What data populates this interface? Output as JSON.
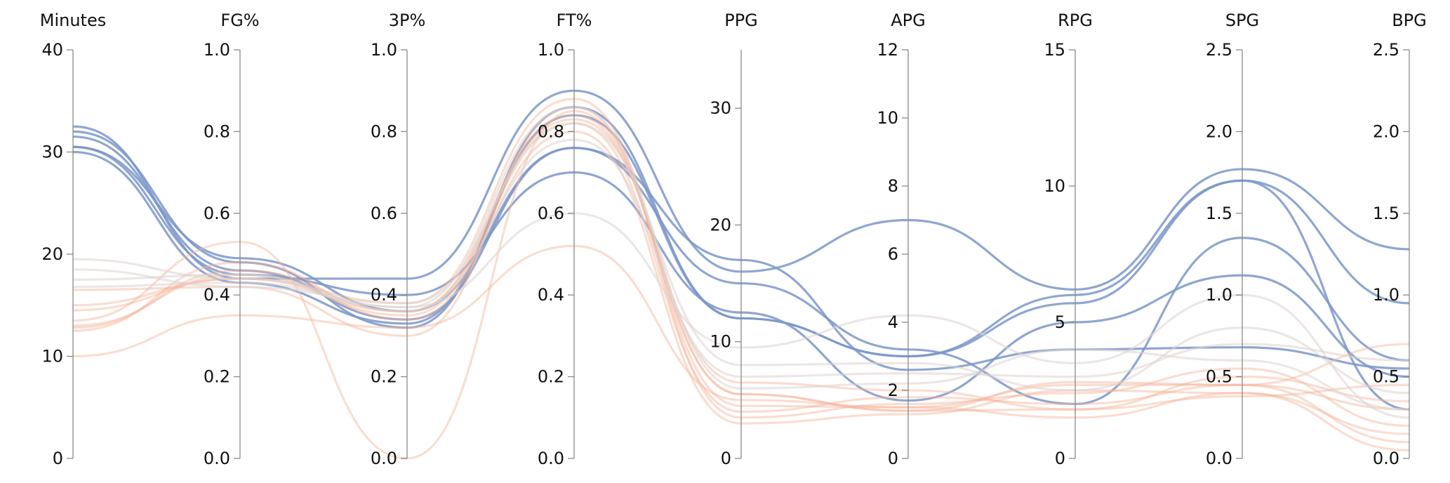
{
  "chart_data": {
    "type": "parallel-coordinates",
    "title": "",
    "colors": {
      "blue": "#7b97c9",
      "orange": "#f4b49a",
      "grey": "#dcd4d0",
      "axis": "#8a8a8a"
    },
    "axes": [
      {
        "name": "Minutes",
        "range": [
          0,
          40
        ],
        "ticks": [
          "0",
          "10",
          "20",
          "30",
          "40"
        ]
      },
      {
        "name": "FG%",
        "range": [
          0,
          1
        ],
        "ticks": [
          "0.0",
          "0.2",
          "0.4",
          "0.6",
          "0.8",
          "1.0"
        ]
      },
      {
        "name": "3P%",
        "range": [
          0,
          1
        ],
        "ticks": [
          "0.0",
          "0.2",
          "0.4",
          "0.6",
          "0.8",
          "1.0"
        ]
      },
      {
        "name": "FT%",
        "range": [
          0,
          1
        ],
        "ticks": [
          "0.0",
          "0.2",
          "0.4",
          "0.6",
          "0.8",
          "1.0"
        ]
      },
      {
        "name": "PPG",
        "range": [
          0,
          35
        ],
        "ticks": [
          "0",
          "10",
          "20",
          "30"
        ]
      },
      {
        "name": "APG",
        "range": [
          0,
          12
        ],
        "ticks": [
          "0",
          "2",
          "4",
          "6",
          "8",
          "10",
          "12"
        ]
      },
      {
        "name": "RPG",
        "range": [
          0,
          15
        ],
        "ticks": [
          "0",
          "5",
          "10",
          "15"
        ]
      },
      {
        "name": "SPG",
        "range": [
          0,
          2.5
        ],
        "ticks": [
          "0.0",
          "0.5",
          "1.0",
          "1.5",
          "2.0",
          "2.5"
        ]
      },
      {
        "name": "BPG",
        "range": [
          0,
          2.5
        ],
        "ticks": [
          "0.0",
          "0.5",
          "1.0",
          "1.5",
          "2.0",
          "2.5"
        ]
      }
    ],
    "series": [
      {
        "color": "blue",
        "opacity": 0.85,
        "values": [
          32.5,
          0.44,
          0.44,
          0.9,
          16.0,
          7.0,
          6.2,
          1.77,
          1.28
        ]
      },
      {
        "color": "blue",
        "opacity": 0.85,
        "values": [
          32.0,
          0.48,
          0.32,
          0.86,
          12.0,
          3.0,
          5.7,
          1.7,
          0.95
        ]
      },
      {
        "color": "blue",
        "opacity": 0.85,
        "values": [
          31.5,
          0.46,
          0.34,
          0.76,
          15.0,
          3.2,
          2.0,
          1.35,
          0.6
        ]
      },
      {
        "color": "blue",
        "opacity": 0.85,
        "values": [
          30.5,
          0.49,
          0.36,
          0.76,
          17.0,
          2.6,
          4.0,
          0.68,
          0.55
        ]
      },
      {
        "color": "blue",
        "opacity": 0.85,
        "values": [
          30.5,
          0.45,
          0.4,
          0.7,
          12.5,
          1.7,
          5.0,
          1.12,
          0.5
        ]
      },
      {
        "color": "blue",
        "opacity": 0.85,
        "values": [
          30.0,
          0.43,
          0.33,
          0.84,
          12.0,
          3.0,
          6.0,
          1.7,
          0.3
        ]
      },
      {
        "color": "orange",
        "opacity": 0.45,
        "values": [
          10.0,
          0.35,
          0.32,
          0.52,
          5.0,
          1.5,
          2.7,
          0.45,
          0.7
        ]
      },
      {
        "color": "orange",
        "opacity": 0.45,
        "values": [
          12.5,
          0.48,
          0.34,
          0.8,
          3.0,
          1.3,
          2.5,
          0.4,
          0.15
        ]
      },
      {
        "color": "orange",
        "opacity": 0.45,
        "values": [
          13.0,
          0.45,
          0.35,
          0.82,
          4.0,
          1.8,
          2.0,
          0.45,
          0.3
        ]
      },
      {
        "color": "orange",
        "opacity": 0.45,
        "values": [
          13.5,
          0.53,
          0.0,
          0.85,
          5.5,
          1.4,
          2.8,
          0.45,
          0.1
        ]
      },
      {
        "color": "orange",
        "opacity": 0.45,
        "values": [
          16.5,
          0.42,
          0.3,
          0.86,
          4.5,
          1.5,
          1.5,
          0.4,
          0.05
        ]
      },
      {
        "color": "orange",
        "opacity": 0.45,
        "values": [
          14.5,
          0.44,
          0.36,
          0.84,
          5.5,
          1.4,
          1.8,
          0.38,
          0.45
        ]
      },
      {
        "color": "orange",
        "opacity": 0.45,
        "values": [
          15.0,
          0.44,
          0.38,
          0.88,
          3.5,
          1.6,
          2.4,
          0.55,
          0.2
        ]
      },
      {
        "color": "orange",
        "opacity": 0.45,
        "values": [
          12.8,
          0.46,
          0.36,
          0.83,
          6.5,
          2.0,
          1.8,
          0.5,
          0.35
        ]
      },
      {
        "color": "grey",
        "opacity": 0.55,
        "values": [
          19.5,
          0.44,
          0.37,
          0.6,
          9.5,
          4.2,
          3.5,
          1.0,
          0.25
        ]
      },
      {
        "color": "grey",
        "opacity": 0.55,
        "values": [
          18.5,
          0.42,
          0.38,
          0.82,
          8.0,
          2.8,
          2.5,
          0.8,
          0.4
        ]
      },
      {
        "color": "grey",
        "opacity": 0.55,
        "values": [
          17.5,
          0.45,
          0.36,
          0.78,
          7.0,
          2.5,
          3.0,
          0.7,
          0.6
        ]
      },
      {
        "color": "grey",
        "opacity": 0.55,
        "values": [
          16.8,
          0.43,
          0.37,
          0.86,
          6.0,
          2.2,
          4.0,
          0.6,
          0.3
        ]
      }
    ]
  }
}
